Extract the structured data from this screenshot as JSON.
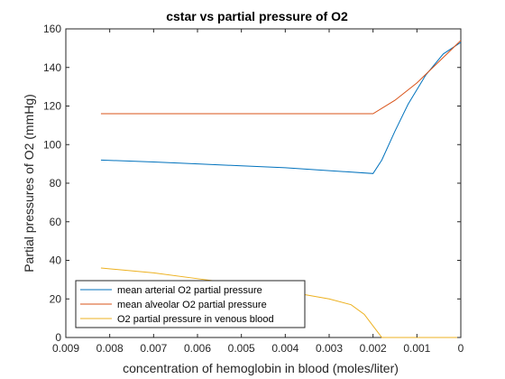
{
  "chart_data": {
    "type": "line",
    "title": "cstar vs partial pressure of O2",
    "xlabel": "concentration of hemoglobin in blood (moles/liter)",
    "ylabel": "Partial pressures of O2 (mmHg)",
    "xlim": [
      0.009,
      0
    ],
    "x_reversed": true,
    "ylim": [
      0,
      160
    ],
    "x_ticks": [
      0.009,
      0.008,
      0.007,
      0.006,
      0.005,
      0.004,
      0.003,
      0.002,
      0.001,
      0
    ],
    "x_tick_labels": [
      "0.009",
      "0.008",
      "0.007",
      "0.006",
      "0.005",
      "0.004",
      "0.003",
      "0.002",
      "0.001",
      "0"
    ],
    "y_ticks": [
      0,
      20,
      40,
      60,
      80,
      100,
      120,
      140,
      160
    ],
    "y_tick_labels": [
      "0",
      "20",
      "40",
      "60",
      "80",
      "100",
      "120",
      "140",
      "160"
    ],
    "grid": false,
    "legend_position": "bottom-left",
    "series": [
      {
        "name": "mean arterial O2 partial pressure",
        "color": "#0072bd",
        "points": [
          [
            0.0082,
            92
          ],
          [
            0.007,
            91
          ],
          [
            0.006,
            90
          ],
          [
            0.005,
            89
          ],
          [
            0.004,
            88
          ],
          [
            0.003,
            86.5
          ],
          [
            0.002,
            85
          ],
          [
            0.0018,
            92
          ],
          [
            0.0015,
            107
          ],
          [
            0.0012,
            121
          ],
          [
            0.0008,
            136
          ],
          [
            0.0004,
            147
          ],
          [
            0.0,
            153
          ]
        ]
      },
      {
        "name": "mean alveolar O2 partial pressure",
        "color": "#d95319",
        "points": [
          [
            0.0082,
            116
          ],
          [
            0.007,
            116
          ],
          [
            0.006,
            116
          ],
          [
            0.005,
            116
          ],
          [
            0.004,
            116
          ],
          [
            0.003,
            116
          ],
          [
            0.002,
            116
          ],
          [
            0.0015,
            123
          ],
          [
            0.001,
            132
          ],
          [
            0.0005,
            143
          ],
          [
            0.0,
            154
          ]
        ]
      },
      {
        "name": "O2 partial pressure in venous blood",
        "color": "#edb120",
        "points": [
          [
            0.0082,
            36
          ],
          [
            0.007,
            33.5
          ],
          [
            0.006,
            30.5
          ],
          [
            0.005,
            27.5
          ],
          [
            0.004,
            24
          ],
          [
            0.003,
            20
          ],
          [
            0.0025,
            17
          ],
          [
            0.0022,
            12
          ],
          [
            0.002,
            6
          ],
          [
            0.0019,
            3
          ],
          [
            0.0018,
            0
          ],
          [
            0.001,
            0
          ],
          [
            0.0,
            0
          ]
        ]
      }
    ]
  }
}
